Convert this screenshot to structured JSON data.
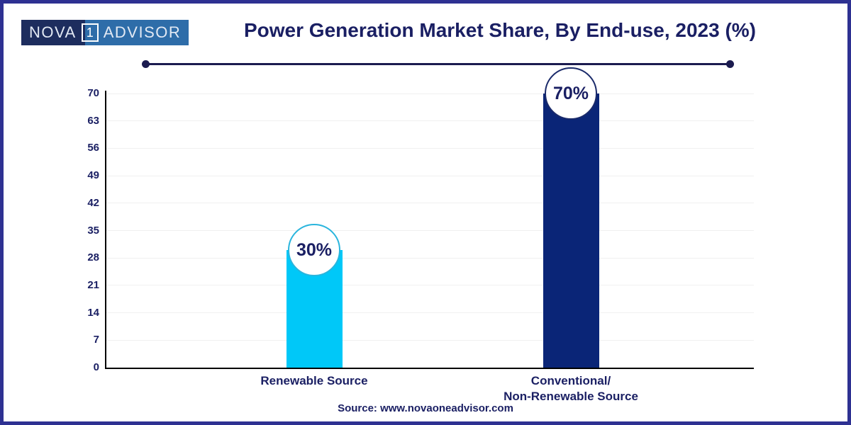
{
  "frame": {
    "border_color": "#2e3192",
    "background": "#ffffff"
  },
  "logo": {
    "left_text": "NOVA",
    "middle_text": "1",
    "right_text": "ADVISOR",
    "left_bg": "#1d2d5e",
    "right_bg": "#2e6da9",
    "text_color": "#e2e9f4"
  },
  "header": {
    "title": "Power Generation Market Share, By End-use, 2023 (%)",
    "title_color": "#1a1f63"
  },
  "divider": {
    "color": "#1b1b4f"
  },
  "chart_data": {
    "type": "bar",
    "title": "Power Generation Market Share, By End-use, 2023 (%)",
    "categories": [
      "Renewable Source",
      "Conventional/\nNon-Renewable Source"
    ],
    "values": [
      30,
      70
    ],
    "data_labels": [
      "30%",
      "70%"
    ],
    "bar_colors": [
      "#00c8f8",
      "#0a2577"
    ],
    "bubble_border_colors": [
      "#2ab5dd",
      "#1a2a6a"
    ],
    "bubble_fill": "#ffffff",
    "yticks": [
      0,
      7,
      14,
      21,
      28,
      35,
      42,
      49,
      56,
      63,
      70
    ],
    "ylim": [
      0,
      70
    ],
    "xlabel": "",
    "ylabel": "",
    "grid": true,
    "gridline_color": "#f0f0f0",
    "axis_color": "#000000",
    "tick_label_color": "#1a1f63",
    "legend": false
  },
  "footer": {
    "source": "Source: www.novaoneadvisor.com"
  }
}
